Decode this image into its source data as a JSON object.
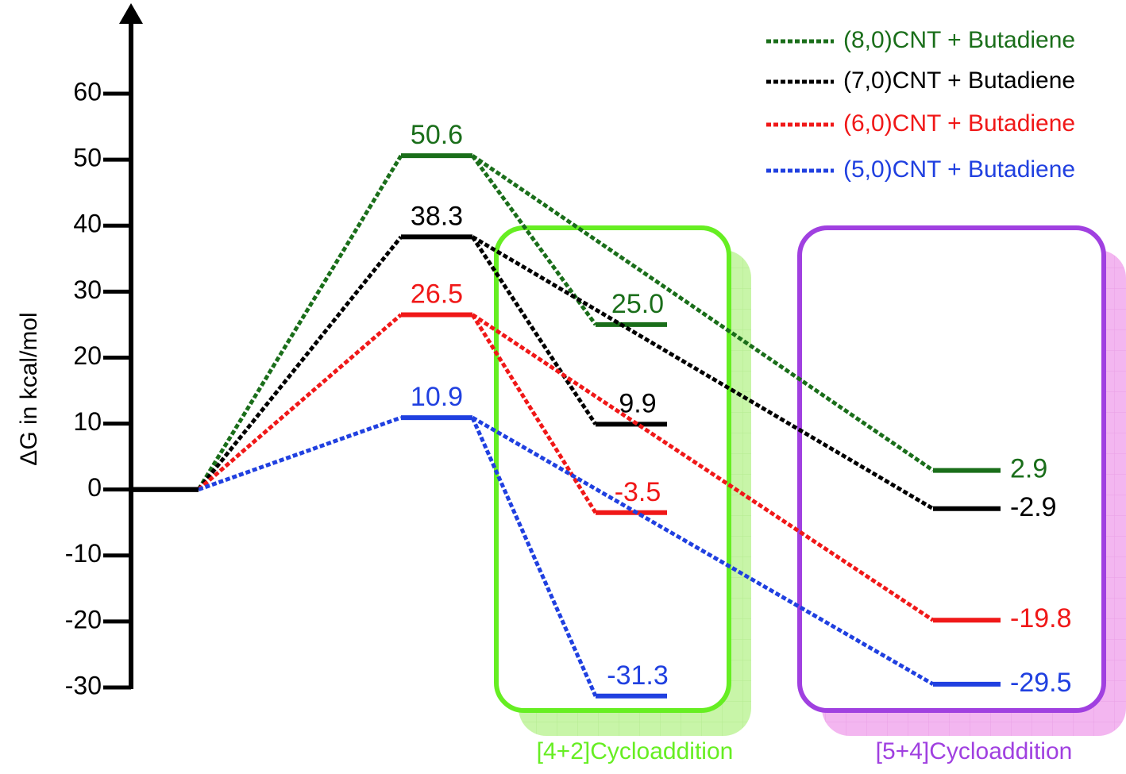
{
  "chart_data": {
    "type": "energy-profile",
    "y_label": "ΔG in kcal/mol",
    "categories": [
      null,
      null,
      "[4+2]Cycloaddition",
      "[5+4]Cycloaddition"
    ],
    "category_colors": [
      null,
      null,
      "#66ee22",
      "#a040e0"
    ],
    "ylim": [
      -30,
      73
    ],
    "yticks": [
      -30,
      -20,
      -10,
      0,
      10,
      20,
      30,
      40,
      50,
      60
    ],
    "legend": "top-right",
    "series": [
      {
        "name": "(8,0)CNT + Butadiene",
        "color": "#1a6e1a",
        "values": [
          0,
          50.6,
          25.0,
          2.9
        ],
        "value_labels": [
          null,
          "50.6",
          "25.0",
          "2.9"
        ]
      },
      {
        "name": "(7,0)CNT + Butadiene",
        "color": "#000000",
        "values": [
          0,
          38.3,
          9.9,
          -2.9
        ]
      },
      {
        "name": "(6,0)CNT + Butadiene",
        "color": "#f01818",
        "values": [
          0,
          26.5,
          -3.5,
          -19.8
        ]
      },
      {
        "name": "(5,0)CNT + Butadiene",
        "color": "#2040e0",
        "values": [
          0,
          10.9,
          -31.3,
          -29.5
        ]
      }
    ]
  }
}
